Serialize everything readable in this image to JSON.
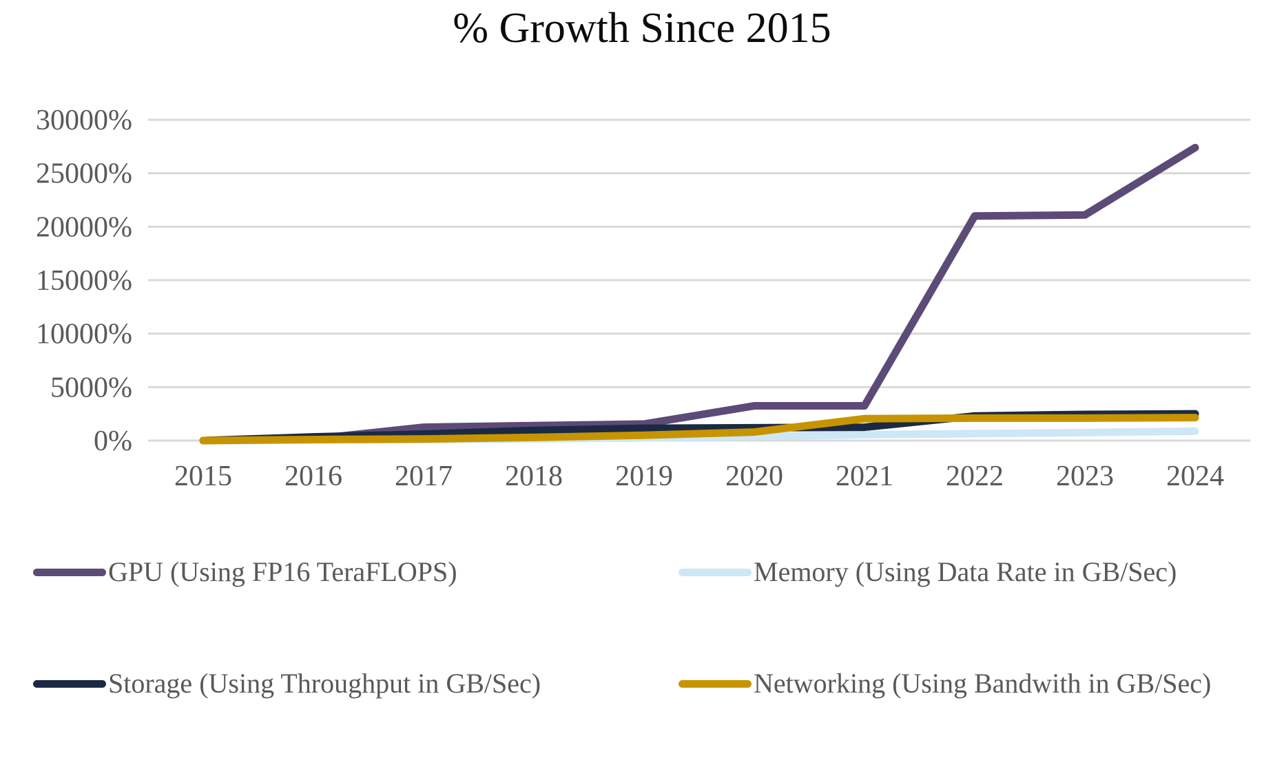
{
  "chart_data": {
    "type": "line",
    "title": "% Growth Since 2015",
    "x_labels": [
      "2015",
      "2016",
      "2017",
      "2018",
      "2019",
      "2020",
      "2021",
      "2022",
      "2023",
      "2024"
    ],
    "y_axis": {
      "ticks": [
        0,
        5000,
        10000,
        15000,
        20000,
        25000,
        30000
      ],
      "tick_labels": [
        "0%",
        "5000%",
        "10000%",
        "15000%",
        "20000%",
        "25000%",
        "30000%"
      ],
      "range": [
        0,
        30000
      ]
    },
    "series": [
      {
        "name": "GPU (Using FP16 TeraFLOPS)",
        "color": "#5C4A77",
        "values": [
          0,
          150,
          1250,
          1400,
          1550,
          3250,
          3250,
          21000,
          21100,
          27400
        ]
      },
      {
        "name": "Memory (Using Data Rate in GB/Sec)",
        "color": "#CDE7F7",
        "values": [
          0,
          50,
          100,
          150,
          250,
          400,
          550,
          650,
          750,
          875
        ]
      },
      {
        "name": "Storage (Using Throughput in GB/Sec)",
        "color": "#1B2943",
        "values": [
          0,
          350,
          600,
          950,
          1150,
          1200,
          1250,
          2300,
          2450,
          2500
        ]
      },
      {
        "name": "Networking (Using Bandwith in GB/Sec)",
        "color": "#C79400",
        "values": [
          0,
          100,
          150,
          300,
          500,
          800,
          2050,
          2100,
          2100,
          2150
        ]
      }
    ],
    "grid": "horizontal",
    "gridline_color": "#D9D9D9",
    "label_color": "#595959",
    "legend_position": "bottom"
  }
}
